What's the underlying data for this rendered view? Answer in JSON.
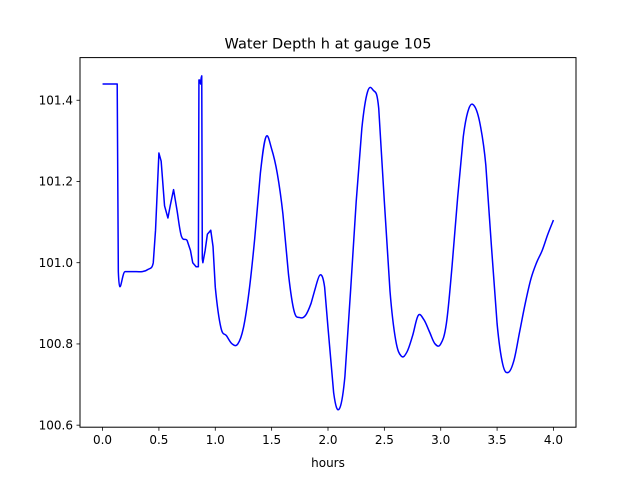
{
  "chart_data": {
    "type": "line",
    "title": "Water Depth h at gauge 105",
    "xlabel": "hours",
    "ylabel": "",
    "xlim": [
      -0.2,
      4.2
    ],
    "ylim": [
      100.595,
      101.505
    ],
    "x_ticks": [
      0.0,
      0.5,
      1.0,
      1.5,
      2.0,
      2.5,
      3.0,
      3.5,
      4.0
    ],
    "x_tick_labels": [
      "0.0",
      "0.5",
      "1.0",
      "1.5",
      "2.0",
      "2.5",
      "3.0",
      "3.5",
      "4.0"
    ],
    "y_ticks": [
      100.6,
      100.8,
      101.0,
      101.2,
      101.4
    ],
    "y_tick_labels": [
      "100.6",
      "100.8",
      "101.0",
      "101.2",
      "101.4"
    ],
    "grid": false,
    "legend": "none",
    "series": [
      {
        "color": "#0000ff",
        "x": [
          0.0,
          0.05,
          0.1,
          0.13,
          0.14,
          0.2,
          0.3,
          0.35,
          0.4,
          0.45,
          0.47,
          0.5,
          0.52,
          0.55,
          0.58,
          0.6,
          0.63,
          0.66,
          0.7,
          0.75,
          0.78,
          0.8,
          0.83,
          0.85,
          0.855,
          0.86,
          0.87,
          0.875,
          0.88,
          0.885,
          0.89,
          0.91,
          0.93,
          0.96,
          0.98,
          1.0,
          1.05,
          1.1,
          1.15,
          1.2,
          1.25,
          1.3,
          1.35,
          1.4,
          1.45,
          1.5,
          1.55,
          1.6,
          1.65,
          1.7,
          1.75,
          1.8,
          1.85,
          1.88,
          1.93,
          1.97,
          2.0,
          2.05,
          2.1,
          2.15,
          2.2,
          2.25,
          2.3,
          2.35,
          2.4,
          2.45,
          2.5,
          2.55,
          2.6,
          2.65,
          2.7,
          2.75,
          2.8,
          2.85,
          2.9,
          2.95,
          3.0,
          3.05,
          3.1,
          3.15,
          3.2,
          3.25,
          3.3,
          3.35,
          3.4,
          3.45,
          3.5,
          3.55,
          3.6,
          3.65,
          3.7,
          3.75,
          3.8,
          3.85,
          3.9,
          3.95,
          4.0
        ],
        "y": [
          101.44,
          101.44,
          101.44,
          101.44,
          100.978,
          100.978,
          100.978,
          100.978,
          100.983,
          101.0,
          101.08,
          101.27,
          101.25,
          101.14,
          101.11,
          101.14,
          101.18,
          101.13,
          101.065,
          101.055,
          101.03,
          101.0,
          100.99,
          100.99,
          101.45,
          101.45,
          101.44,
          101.455,
          101.46,
          101.01,
          101.0,
          101.03,
          101.07,
          101.08,
          101.04,
          100.94,
          100.84,
          100.82,
          100.8,
          100.8,
          100.84,
          100.93,
          101.06,
          101.22,
          101.31,
          101.28,
          101.22,
          101.12,
          100.97,
          100.88,
          100.865,
          100.87,
          100.9,
          100.93,
          100.97,
          100.94,
          100.84,
          100.68,
          100.64,
          100.72,
          100.93,
          101.15,
          101.33,
          101.42,
          101.425,
          101.38,
          101.15,
          100.93,
          100.81,
          100.77,
          100.78,
          100.82,
          100.87,
          100.86,
          100.83,
          100.8,
          100.8,
          100.85,
          100.99,
          101.16,
          101.31,
          101.38,
          101.385,
          101.34,
          101.24,
          101.04,
          100.85,
          100.75,
          100.73,
          100.76,
          100.83,
          100.9,
          100.96,
          101.0,
          101.03,
          101.07,
          101.105
        ]
      }
    ]
  }
}
